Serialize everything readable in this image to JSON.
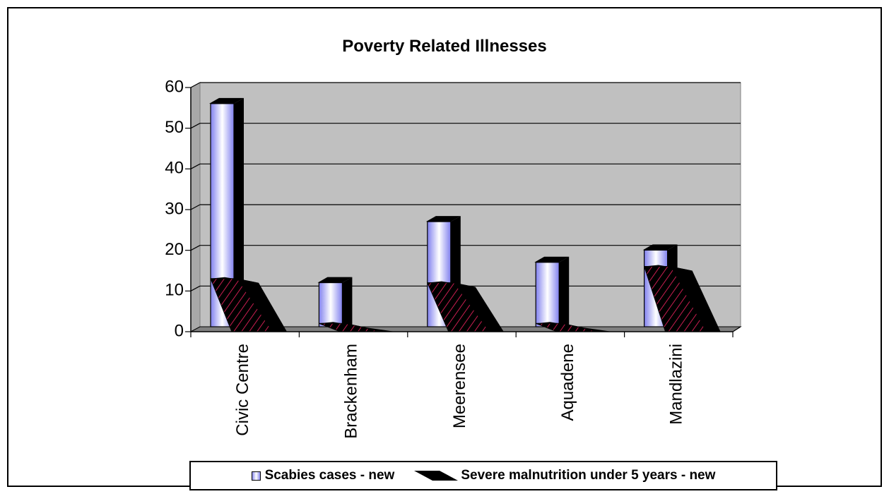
{
  "chart_data": {
    "type": "bar",
    "title": "Poverty Related Illnesses",
    "categories": [
      "Civic Centre",
      "Brackenham",
      "Meerensee",
      "Aquadene",
      "Mandlazini"
    ],
    "series": [
      {
        "name": "Scabies cases - new",
        "values": [
          55,
          11,
          26,
          16,
          19
        ],
        "color": "#9c9cf4"
      },
      {
        "name": "Severe malnutrition under 5 years - new",
        "values": [
          12,
          1,
          11,
          1,
          15
        ],
        "color": "#000000",
        "hatch": "#c81e50"
      }
    ],
    "ylim": [
      0,
      60
    ],
    "yticks": [
      0,
      10,
      20,
      30,
      40,
      50,
      60
    ],
    "grid": true,
    "legend_position": "bottom",
    "plot_background": "#c0c0c0",
    "floor_color": "#808080"
  }
}
